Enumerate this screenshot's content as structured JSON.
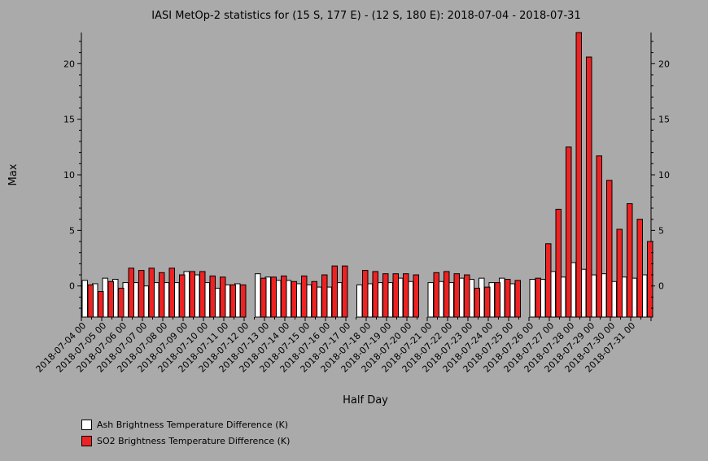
{
  "chart_data": {
    "type": "bar",
    "title": "IASI MetOp-2 statistics for (15 S, 177 E) - (12 S, 180 E): 2018-07-04 - 2018-07-31",
    "xlabel": "Half Day",
    "ylabel": "Max",
    "ylim": [
      -2.8,
      22.8
    ],
    "yticks": [
      0,
      5,
      10,
      15,
      20
    ],
    "xtick_labels": [
      "2018-07-04 00",
      "2018-07-05 00",
      "2018-07-06 00",
      "2018-07-07 00",
      "2018-07-08 00",
      "2018-07-09 00",
      "2018-07-10 00",
      "2018-07-11 00",
      "2018-07-12 00",
      "2018-07-13 00",
      "2018-07-14 00",
      "2018-07-15 00",
      "2018-07-16 00",
      "2018-07-17 00",
      "2018-07-18 00",
      "2018-07-19 00",
      "2018-07-20 00",
      "2018-07-21 00",
      "2018-07-22 00",
      "2018-07-23 00",
      "2018-07-24 00",
      "2018-07-25 00",
      "2018-07-26 00",
      "2018-07-27 00",
      "2018-07-28 00",
      "2018-07-29 00",
      "2018-07-30 00",
      "2018-07-31 00"
    ],
    "series": [
      {
        "name": "Ash Brightness Temperature Difference (K)",
        "color": "#ffffff",
        "values": [
          0.5,
          0.2,
          0.7,
          0.6,
          0.3,
          0.3,
          0.0,
          0.3,
          0.3,
          0.3,
          1.3,
          1.0,
          0.3,
          -0.2,
          0.1,
          0.2,
          null,
          1.1,
          0.8,
          0.5,
          0.5,
          0.2,
          0.1,
          -0.1,
          -0.1,
          0.3,
          null,
          0.1,
          0.2,
          0.3,
          0.3,
          0.7,
          0.4,
          null,
          0.3,
          0.4,
          0.3,
          0.7,
          0.6,
          0.7,
          0.3,
          0.7,
          0.2,
          null,
          0.6,
          0.6,
          1.3,
          0.8,
          2.1,
          1.5,
          1.0,
          1.1,
          0.4,
          0.8,
          0.7,
          1.0
        ]
      },
      {
        "name": "SO2 Brightness Temperature Difference (K)",
        "color": "#ee2222",
        "values": [
          0.1,
          -0.5,
          0.4,
          -0.2,
          1.6,
          1.4,
          1.6,
          1.2,
          1.6,
          1.0,
          1.3,
          1.3,
          0.9,
          0.8,
          0.1,
          0.1,
          null,
          0.7,
          0.8,
          0.9,
          0.4,
          0.9,
          0.4,
          1.0,
          1.8,
          1.8,
          null,
          1.4,
          1.3,
          1.1,
          1.1,
          1.1,
          1.0,
          null,
          1.2,
          1.3,
          1.1,
          1.0,
          -0.2,
          -0.1,
          0.3,
          0.6,
          0.5,
          null,
          0.7,
          3.8,
          6.9,
          12.5,
          22.8,
          20.6,
          11.7,
          9.5,
          5.1,
          7.4,
          6.0,
          4.0
        ]
      }
    ],
    "legend": "bottom-left",
    "grid": false
  }
}
